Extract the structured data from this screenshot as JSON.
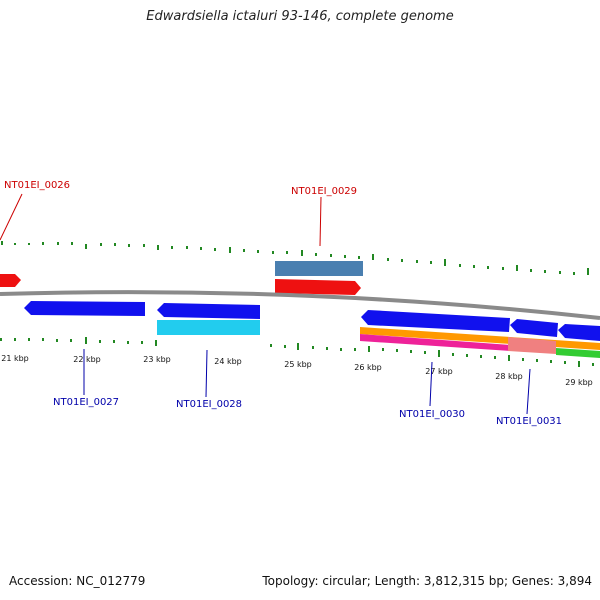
{
  "title": "Edwardsiella ictaluri 93-146, complete genome",
  "footer": {
    "accession": "Accession: NC_012779",
    "topology": "Topology: circular; Length: 3,812,315 bp; Genes: 3,894"
  },
  "ruler": {
    "labels": [
      "21 kbp",
      "22 kbp",
      "23 kbp",
      "24 kbp",
      "25 kbp",
      "26 kbp",
      "27 kbp",
      "28 kbp",
      "29 kbp"
    ]
  },
  "genes": [
    {
      "name": "NT01EI_0026",
      "strand": "plus"
    },
    {
      "name": "NT01EI_0027",
      "strand": "minus"
    },
    {
      "name": "NT01EI_0028",
      "strand": "minus"
    },
    {
      "name": "NT01EI_0029",
      "strand": "plus"
    },
    {
      "name": "NT01EI_0030",
      "strand": "minus"
    },
    {
      "name": "NT01EI_0031",
      "strand": "minus"
    }
  ],
  "colors": {
    "plus_cds": "#ee1111",
    "minus_cds": "#1111ee",
    "plus_feature": "#4a7fb0",
    "minus_feature": "#22ccee",
    "orange": "#ff9900",
    "magenta": "#ee2299",
    "pink": "#f08080",
    "green": "#33cc33",
    "backbone": "#8a8a8a",
    "ticks": "#228822",
    "plus_label": "#cc0000",
    "minus_label": "#0000aa"
  }
}
